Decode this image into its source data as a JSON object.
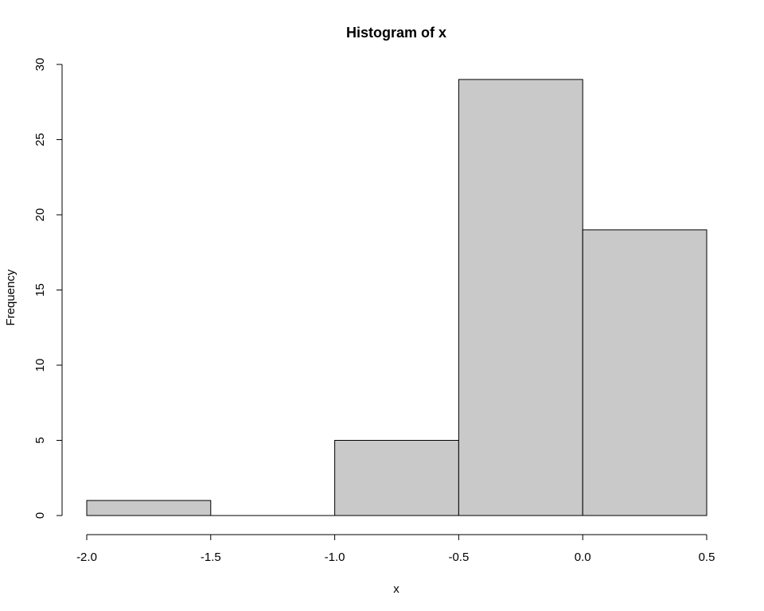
{
  "chart_data": {
    "type": "bar",
    "title": "Histogram of x",
    "xlabel": "x",
    "ylabel": "Frequency",
    "bins": [
      {
        "start": -2.0,
        "end": -1.5,
        "count": 1
      },
      {
        "start": -1.5,
        "end": -1.0,
        "count": 0
      },
      {
        "start": -1.0,
        "end": -0.5,
        "count": 5
      },
      {
        "start": -0.5,
        "end": 0.0,
        "count": 29
      },
      {
        "start": 0.0,
        "end": 0.5,
        "count": 19
      }
    ],
    "xlim": [
      -2.0,
      0.5
    ],
    "ylim": [
      0,
      30
    ],
    "xticks": [
      "-2.0",
      "-1.5",
      "-1.0",
      "-0.5",
      "0.0",
      "0.5"
    ],
    "xtick_values": [
      -2.0,
      -1.5,
      -1.0,
      -0.5,
      0.0,
      0.5
    ],
    "yticks": [
      "0",
      "5",
      "10",
      "15",
      "20",
      "25",
      "30"
    ],
    "ytick_values": [
      0,
      5,
      10,
      15,
      20,
      25,
      30
    ],
    "grid": false,
    "legend": "none",
    "bar_color": "#c9c9c9",
    "edge_color": "#000000"
  }
}
